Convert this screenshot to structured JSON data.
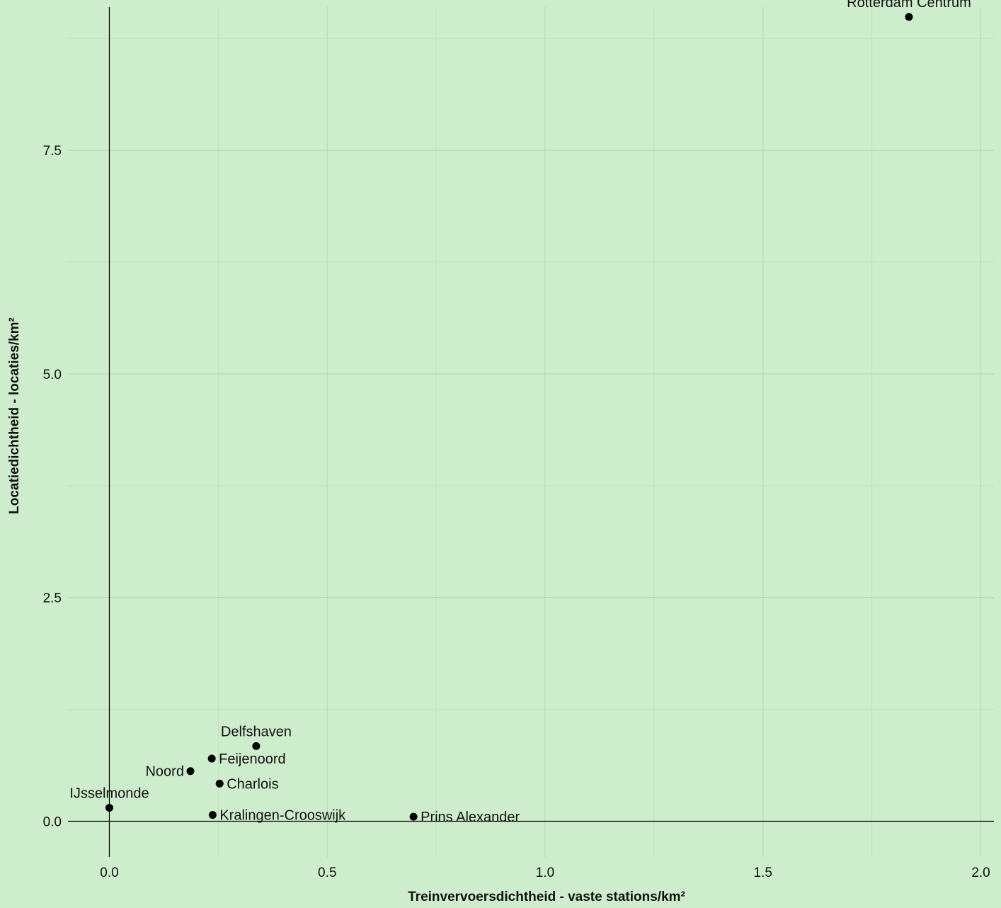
{
  "chart_data": {
    "type": "scatter",
    "title": "",
    "xlabel": "Treinvervoersdichtheid - vaste stations/km²",
    "ylabel": "Locatiedichtheid - locaties/km²",
    "xlim": [
      -0.095,
      2.03
    ],
    "ylim": [
      -0.4,
      9.1
    ],
    "xticks": [
      0.0,
      0.5,
      1.0,
      1.5,
      2.0
    ],
    "xtick_labels": [
      "0.0",
      "0.5",
      "1.0",
      "1.5",
      "2.0"
    ],
    "yticks": [
      0.0,
      2.5,
      5.0,
      7.5
    ],
    "ytick_labels": [
      "0.0",
      "2.5",
      "5.0",
      "7.5"
    ],
    "grid": true,
    "legend": "none",
    "point_color": "#000000",
    "background": "#ceedcc",
    "points": [
      {
        "label": "Rotterdam Centrum",
        "x": 1.835,
        "y": 8.99,
        "label_pos": "above"
      },
      {
        "label": "Delfshaven",
        "x": 0.337,
        "y": 0.84,
        "label_pos": "above"
      },
      {
        "label": "Feijenoord",
        "x": 0.235,
        "y": 0.7,
        "label_pos": "right"
      },
      {
        "label": "Noord",
        "x": 0.186,
        "y": 0.56,
        "label_pos": "left"
      },
      {
        "label": "Charlois",
        "x": 0.253,
        "y": 0.42,
        "label_pos": "right"
      },
      {
        "label": "IJsselmonde",
        "x": 0.0,
        "y": 0.15,
        "label_pos": "above"
      },
      {
        "label": "Kralingen-Crooswijk",
        "x": 0.237,
        "y": 0.07,
        "label_pos": "right"
      },
      {
        "label": "Prins Alexander",
        "x": 0.698,
        "y": 0.05,
        "label_pos": "right"
      }
    ]
  }
}
